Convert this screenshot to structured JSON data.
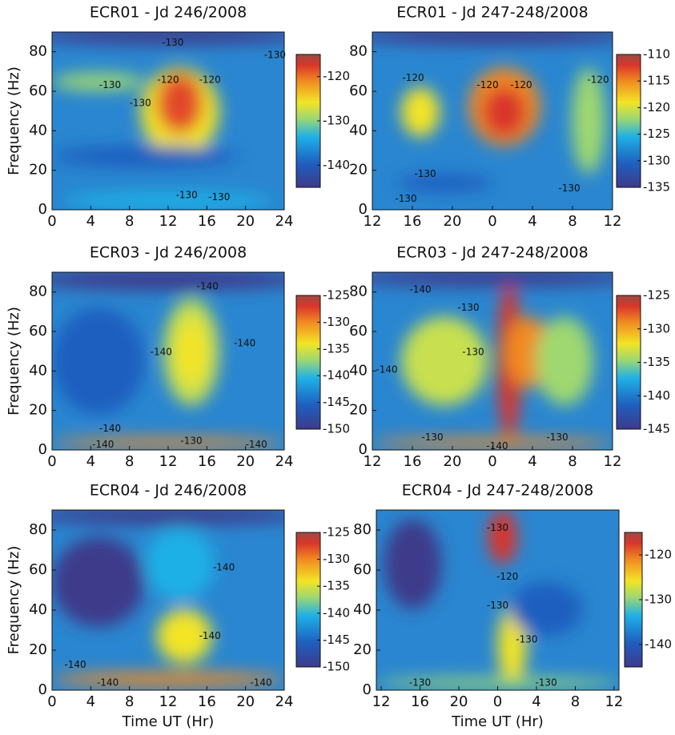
{
  "chart_data": [
    {
      "type": "heatmap",
      "title": "ECR01 - Jd 246/2008",
      "ylabel": "Frequency (Hz)",
      "xlim": [
        0,
        24
      ],
      "xticks": [
        0,
        4,
        8,
        12,
        16,
        20,
        24
      ],
      "ylim": [
        0,
        90
      ],
      "yticks": [
        0,
        20,
        40,
        60,
        80
      ],
      "colorbar": {
        "lim": [
          -145,
          -115
        ],
        "ticks": [
          -140,
          -130,
          -120
        ]
      },
      "annotations": [
        "-130",
        "-120",
        "-120",
        "-130",
        "-130",
        "-130",
        "-130",
        "-130"
      ]
    },
    {
      "type": "heatmap",
      "title": "ECR01 - Jd 247-248/2008",
      "xlim": [
        12,
        36
      ],
      "xticks": [
        12,
        16,
        20,
        {
          "value": 24,
          "label": "0"
        },
        {
          "value": 28,
          "label": "4"
        },
        {
          "value": 32,
          "label": "8"
        },
        {
          "value": 36,
          "label": "12"
        }
      ],
      "ylim": [
        0,
        90
      ],
      "yticks": [
        0,
        20,
        40,
        60,
        80
      ],
      "colorbar": {
        "lim": [
          -135,
          -110
        ],
        "ticks": [
          -135,
          -130,
          -125,
          -120,
          -115,
          -110
        ]
      },
      "annotations": [
        "-120",
        "-120",
        "-120",
        "-120",
        "-130",
        "-130",
        "-130"
      ]
    },
    {
      "type": "heatmap",
      "title": "ECR03 - Jd 246/2008",
      "ylabel": "Frequency (Hz)",
      "xlim": [
        0,
        24
      ],
      "xticks": [
        0,
        4,
        8,
        12,
        16,
        20,
        24
      ],
      "ylim": [
        0,
        90
      ],
      "yticks": [
        0,
        20,
        40,
        60,
        80
      ],
      "colorbar": {
        "lim": [
          -150,
          -125
        ],
        "ticks": [
          -150,
          -145,
          -140,
          -135,
          -130,
          -125
        ]
      },
      "annotations": [
        "-140",
        "-140",
        "-140",
        "-140",
        "-130",
        "-140",
        "-140"
      ]
    },
    {
      "type": "heatmap",
      "title": "ECR03 - Jd 247-248/2008",
      "xlim": [
        12,
        36
      ],
      "xticks": [
        12,
        16,
        20,
        {
          "value": 24,
          "label": "0"
        },
        {
          "value": 28,
          "label": "4"
        },
        {
          "value": 32,
          "label": "8"
        },
        {
          "value": 36,
          "label": "12"
        }
      ],
      "ylim": [
        0,
        90
      ],
      "yticks": [
        0,
        20,
        40,
        60,
        80
      ],
      "colorbar": {
        "lim": [
          -145,
          -125
        ],
        "ticks": [
          -145,
          -140,
          -135,
          -130,
          -125
        ]
      },
      "annotations": [
        "-140",
        "-140",
        "-130",
        "-130",
        "-130",
        "-130",
        "-140"
      ]
    },
    {
      "type": "heatmap",
      "title": "ECR04 - Jd 246/2008",
      "ylabel": "Frequency (Hz)",
      "xlabel": "Time UT (Hr)",
      "xlim": [
        0,
        24
      ],
      "xticks": [
        0,
        4,
        8,
        12,
        16,
        20,
        24
      ],
      "ylim": [
        0,
        90
      ],
      "yticks": [
        0,
        20,
        40,
        60,
        80
      ],
      "colorbar": {
        "lim": [
          -150,
          -125
        ],
        "ticks": [
          -150,
          -145,
          -140,
          -135,
          -130,
          -125
        ]
      },
      "annotations": [
        "-140",
        "-140",
        "-140",
        "-140",
        "-140"
      ]
    },
    {
      "type": "heatmap",
      "title": "ECR04 - Jd 247-248/2008",
      "xlabel": "Time UT (Hr)",
      "xlim": [
        11.5,
        36.5
      ],
      "xticks": [
        12,
        16,
        20,
        {
          "value": 24,
          "label": "0"
        },
        {
          "value": 28,
          "label": "4"
        },
        {
          "value": 32,
          "label": "8"
        },
        {
          "value": 36,
          "label": "12"
        }
      ],
      "ylim": [
        0,
        90
      ],
      "yticks": [
        0,
        20,
        40,
        60,
        80
      ],
      "colorbar": {
        "lim": [
          -145,
          -115
        ],
        "ticks": [
          -140,
          -130,
          -120
        ]
      },
      "annotations": [
        "-130",
        "-120",
        "-130",
        "-130",
        "-130",
        "-130"
      ]
    }
  ]
}
